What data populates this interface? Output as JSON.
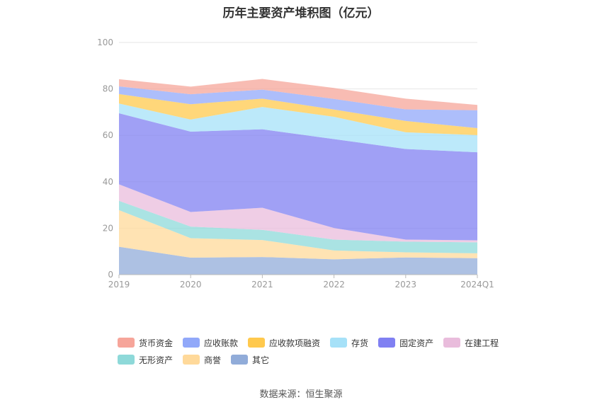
{
  "chart_data": {
    "type": "area",
    "title": "历年主要资产堆积图（亿元）",
    "categories": [
      "2019",
      "2020",
      "2021",
      "2022",
      "2023",
      "2024Q1"
    ],
    "ylim": [
      0,
      100
    ],
    "yticks": [
      "0",
      "20",
      "40",
      "60",
      "80",
      "100"
    ],
    "grid": true,
    "legend_position": "bottom",
    "series": [
      {
        "name": "其它",
        "color": "#91acd9",
        "values": [
          12.0,
          7.3,
          7.6,
          6.6,
          7.4,
          7.1
        ]
      },
      {
        "name": "商誉",
        "color": "#ffd99a",
        "values": [
          15.8,
          8.4,
          7.3,
          3.8,
          2.2,
          2.1
        ]
      },
      {
        "name": "无形资产",
        "color": "#8ed9d9",
        "values": [
          4.0,
          5.0,
          4.4,
          4.7,
          4.6,
          4.7
        ]
      },
      {
        "name": "在建工程",
        "color": "#e9bcdc",
        "values": [
          7.1,
          6.3,
          9.5,
          5.0,
          0.9,
          0.9
        ]
      },
      {
        "name": "固定资产",
        "color": "#8080f2",
        "values": [
          30.6,
          34.6,
          33.8,
          38.3,
          39.0,
          37.9
        ]
      },
      {
        "name": "存货",
        "color": "#a6e1f8",
        "values": [
          4.2,
          5.2,
          9.6,
          9.6,
          7.2,
          7.4
        ]
      },
      {
        "name": "应收款项融资",
        "color": "#ffc94d",
        "values": [
          4.1,
          6.6,
          3.6,
          3.1,
          4.9,
          3.0
        ]
      },
      {
        "name": "应收账款",
        "color": "#91a8f9",
        "values": [
          3.3,
          4.3,
          3.9,
          4.6,
          5.0,
          7.7
        ]
      },
      {
        "name": "货币资金",
        "color": "#f6a59a",
        "values": [
          3.1,
          3.3,
          4.6,
          4.7,
          4.6,
          2.3
        ]
      }
    ]
  },
  "legend": {
    "rows": [
      [
        {
          "label": "货币资金",
          "color": "#f6a59a"
        },
        {
          "label": "应收账款",
          "color": "#91a8f9"
        },
        {
          "label": "应收款项融资",
          "color": "#ffc94d"
        },
        {
          "label": "存货",
          "color": "#a6e1f8"
        },
        {
          "label": "固定资产",
          "color": "#8080f2"
        },
        {
          "label": "在建工程",
          "color": "#e9bcdc"
        }
      ],
      [
        {
          "label": "无形资产",
          "color": "#8ed9d9"
        },
        {
          "label": "商誉",
          "color": "#ffd99a"
        },
        {
          "label": "其它",
          "color": "#91acd9"
        }
      ]
    ]
  },
  "source": "数据来源：恒生聚源"
}
